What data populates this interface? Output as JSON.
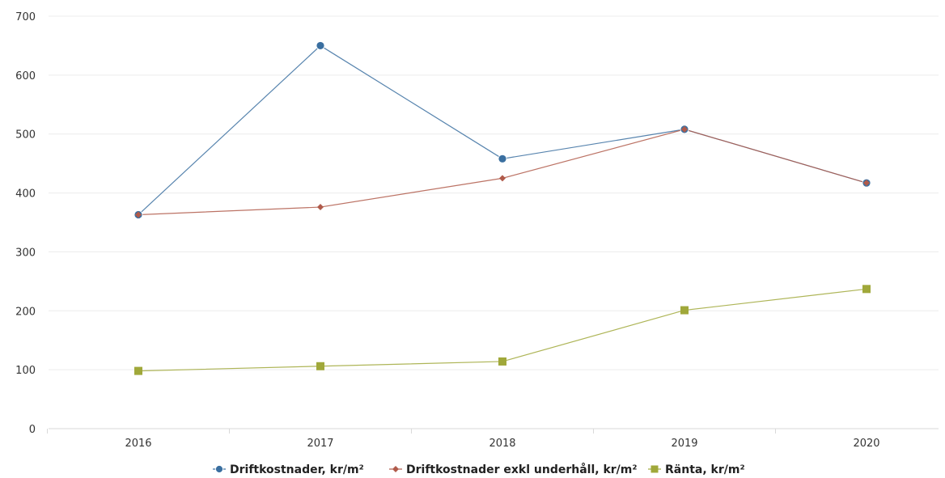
{
  "chart_data": {
    "type": "line",
    "categories": [
      "2016",
      "2017",
      "2018",
      "2019",
      "2020"
    ],
    "ylim": [
      0,
      700
    ],
    "yticks": [
      0,
      100,
      200,
      300,
      400,
      500,
      600,
      700
    ],
    "grid": true,
    "legend_position": "bottom",
    "series": [
      {
        "name": "Driftkostnader, kr/m²",
        "values": [
          363,
          650,
          458,
          508,
          417
        ],
        "color": "#3a6fa0",
        "marker": "circle"
      },
      {
        "name": "Driftkostnader exkl underhåll, kr/m²",
        "values": [
          363,
          376,
          425,
          508,
          417
        ],
        "color": "#b05a4a",
        "marker": "diamond"
      },
      {
        "name": "Ränta, kr/m²",
        "values": [
          98,
          106,
          114,
          201,
          237
        ],
        "color": "#a0a83a",
        "marker": "square"
      }
    ]
  }
}
